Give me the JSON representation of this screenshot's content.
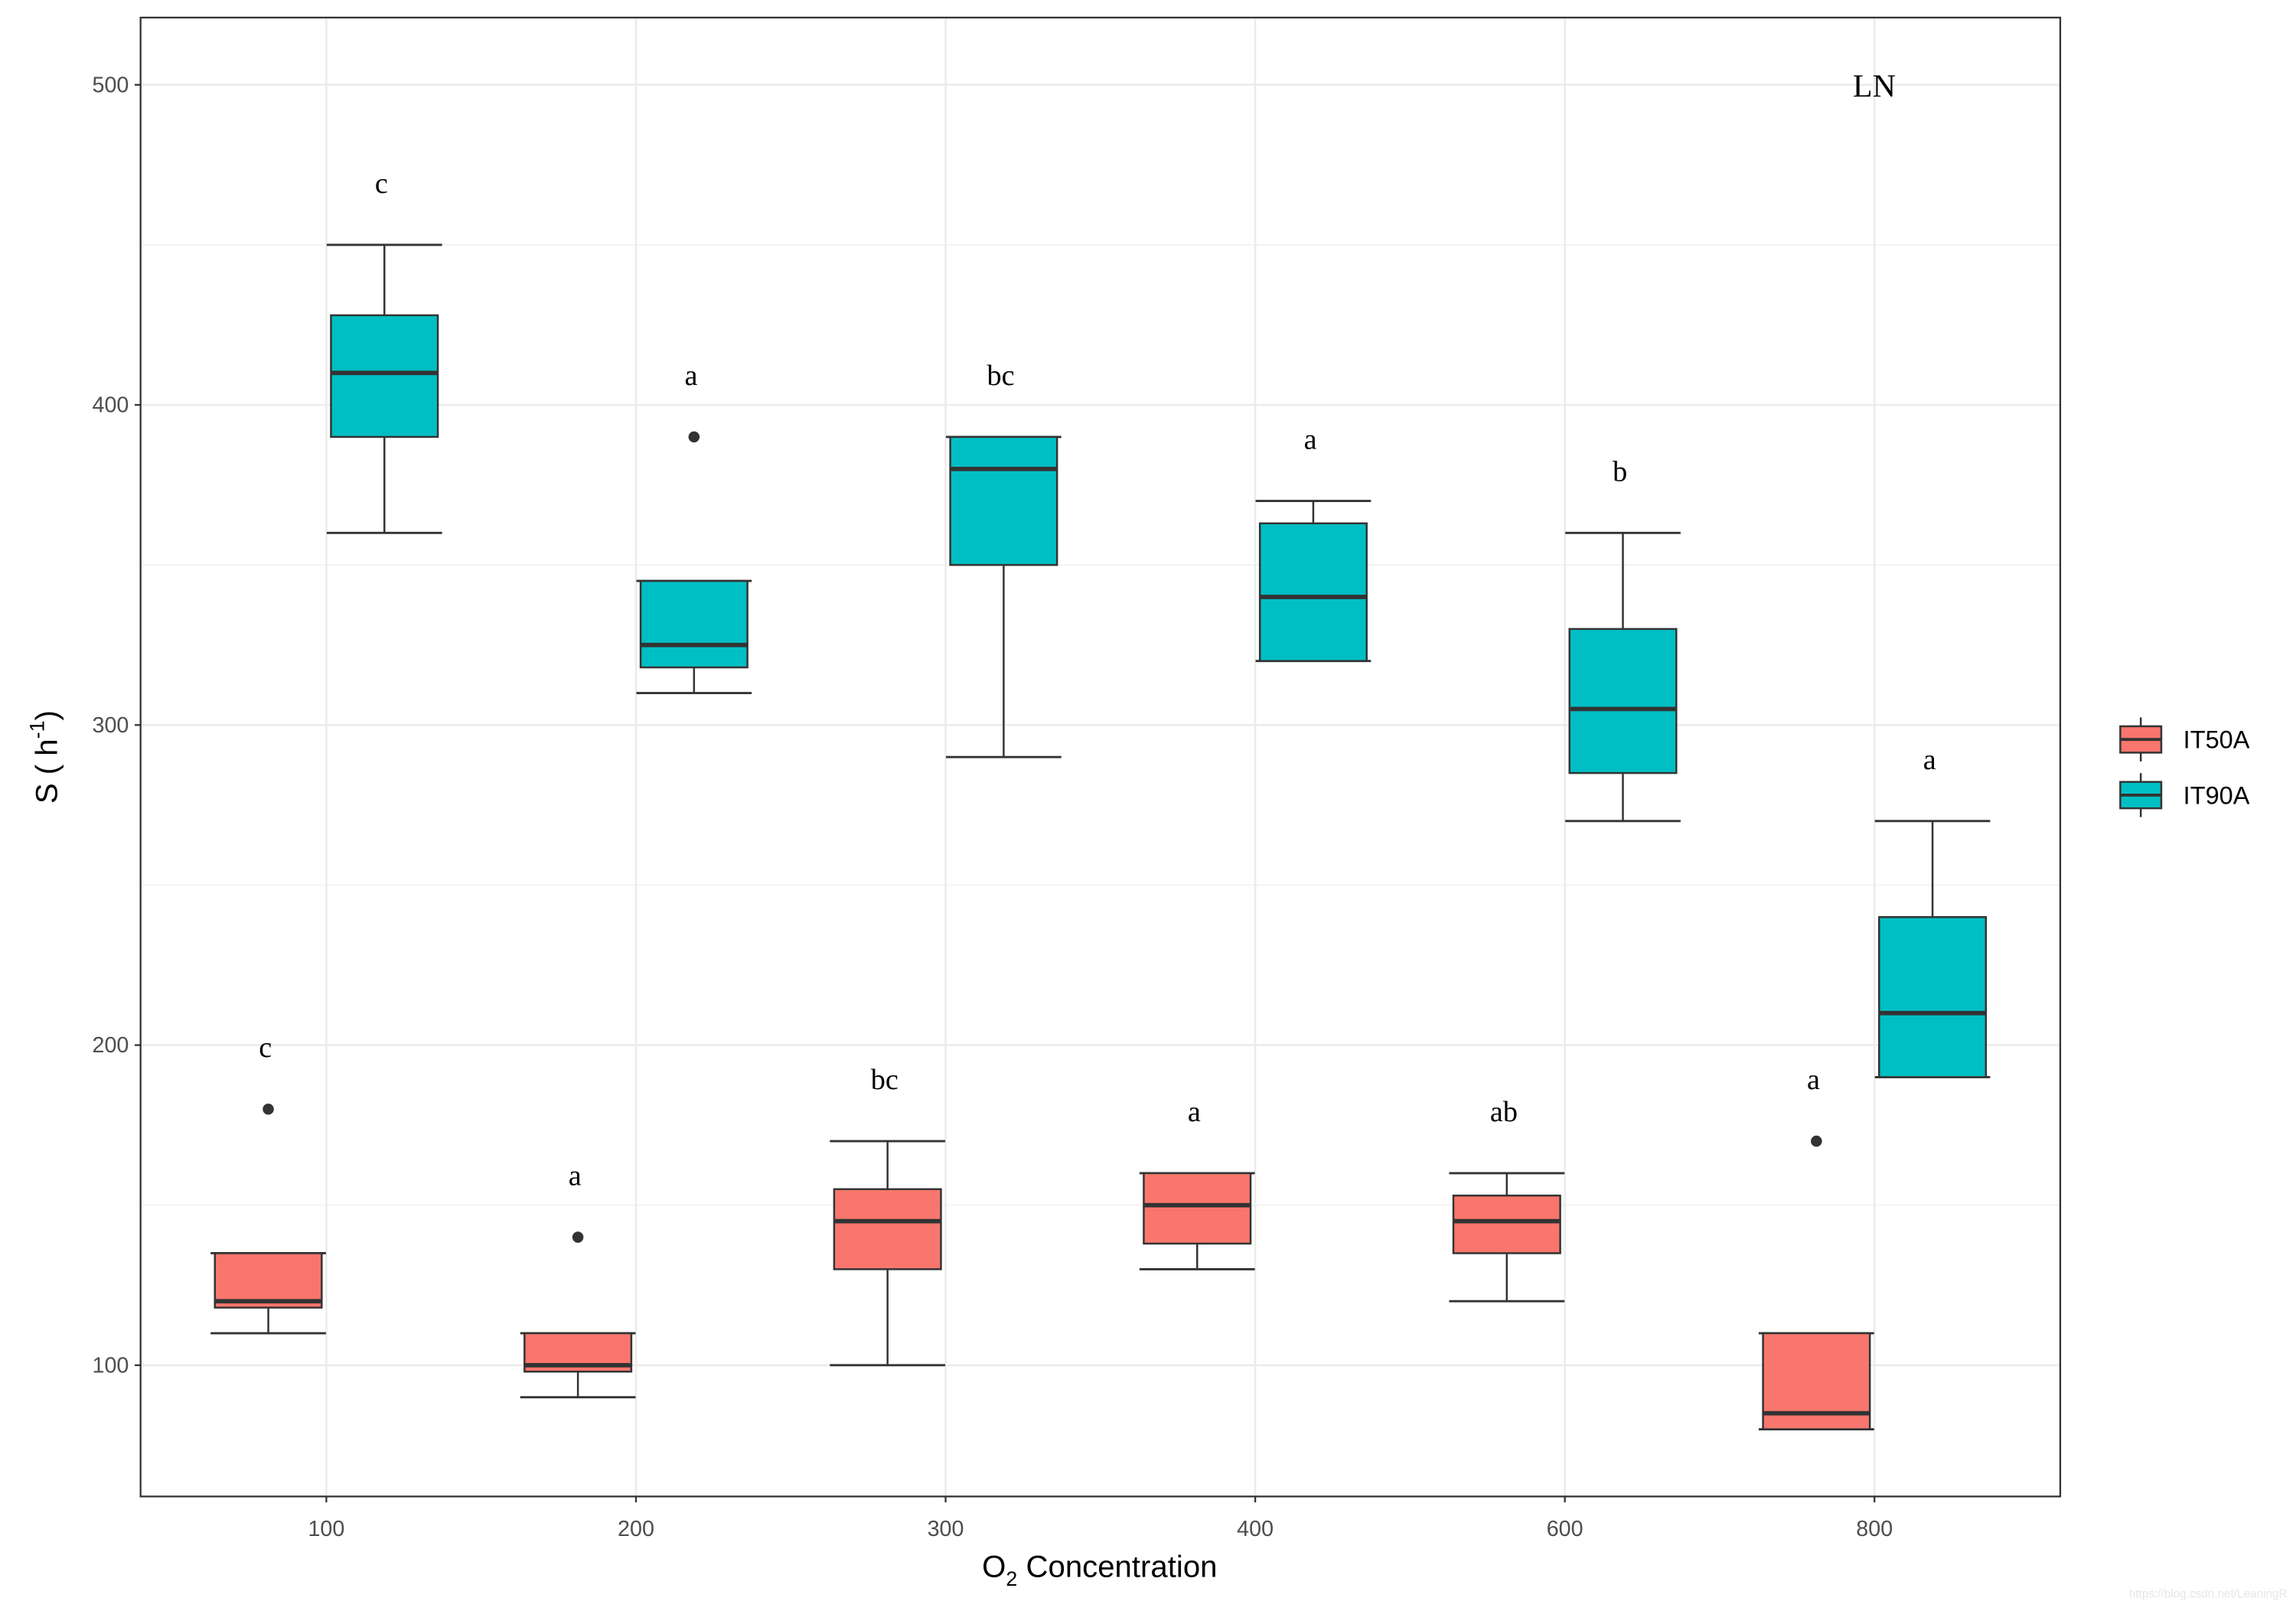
{
  "chart_data": {
    "type": "boxplot",
    "title": "",
    "panel_label": "LN",
    "xlabel": "O2 Concentration",
    "xlabel_main": "O",
    "xlabel_sub": "2",
    "xlabel_rest": " Concentration",
    "ylabel": "S ( h-1)",
    "ylabel_main": "S ( h",
    "ylabel_sup": "-1",
    "ylabel_close": ")",
    "categories": [
      "100",
      "200",
      "300",
      "400",
      "600",
      "800"
    ],
    "ylim": [
      59,
      521
    ],
    "yticks": [
      100,
      200,
      300,
      400,
      500
    ],
    "grid": true,
    "legend_position": "right",
    "series": [
      {
        "name": "IT50A",
        "color": "#F8766D",
        "boxes": [
          {
            "lower_whisker": 110,
            "q1": 118,
            "median": 120,
            "q3": 135,
            "upper_whisker": 135,
            "outliers": [
              180
            ],
            "letter": "c"
          },
          {
            "lower_whisker": 90,
            "q1": 98,
            "median": 100,
            "q3": 110,
            "upper_whisker": 110,
            "outliers": [
              140
            ],
            "letter": "a"
          },
          {
            "lower_whisker": 100,
            "q1": 130,
            "median": 145,
            "q3": 155,
            "upper_whisker": 170,
            "outliers": [],
            "letter": "bc"
          },
          {
            "lower_whisker": 130,
            "q1": 138,
            "median": 150,
            "q3": 160,
            "upper_whisker": 160,
            "outliers": [],
            "letter": "a"
          },
          {
            "lower_whisker": 120,
            "q1": 135,
            "median": 145,
            "q3": 153,
            "upper_whisker": 160,
            "outliers": [],
            "letter": "ab"
          },
          {
            "lower_whisker": 80,
            "q1": 80,
            "median": 85,
            "q3": 110,
            "upper_whisker": 110,
            "outliers": [
              170
            ],
            "letter": "a"
          }
        ]
      },
      {
        "name": "IT90A",
        "color": "#00BFC4",
        "boxes": [
          {
            "lower_whisker": 360,
            "q1": 390,
            "median": 410,
            "q3": 428,
            "upper_whisker": 450,
            "outliers": [],
            "letter": "c"
          },
          {
            "lower_whisker": 310,
            "q1": 318,
            "median": 325,
            "q3": 345,
            "upper_whisker": 345,
            "outliers": [
              390
            ],
            "letter": "a"
          },
          {
            "lower_whisker": 290,
            "q1": 350,
            "median": 380,
            "q3": 390,
            "upper_whisker": 390,
            "outliers": [],
            "letter": "bc"
          },
          {
            "lower_whisker": 320,
            "q1": 320,
            "median": 340,
            "q3": 363,
            "upper_whisker": 370,
            "outliers": [],
            "letter": "a"
          },
          {
            "lower_whisker": 270,
            "q1": 285,
            "median": 305,
            "q3": 330,
            "upper_whisker": 360,
            "outliers": [],
            "letter": "b"
          },
          {
            "lower_whisker": 190,
            "q1": 190,
            "median": 210,
            "q3": 240,
            "upper_whisker": 270,
            "outliers": [],
            "letter": "a"
          }
        ]
      }
    ]
  },
  "watermark": "https://blog.csdn.net/LeaningR"
}
